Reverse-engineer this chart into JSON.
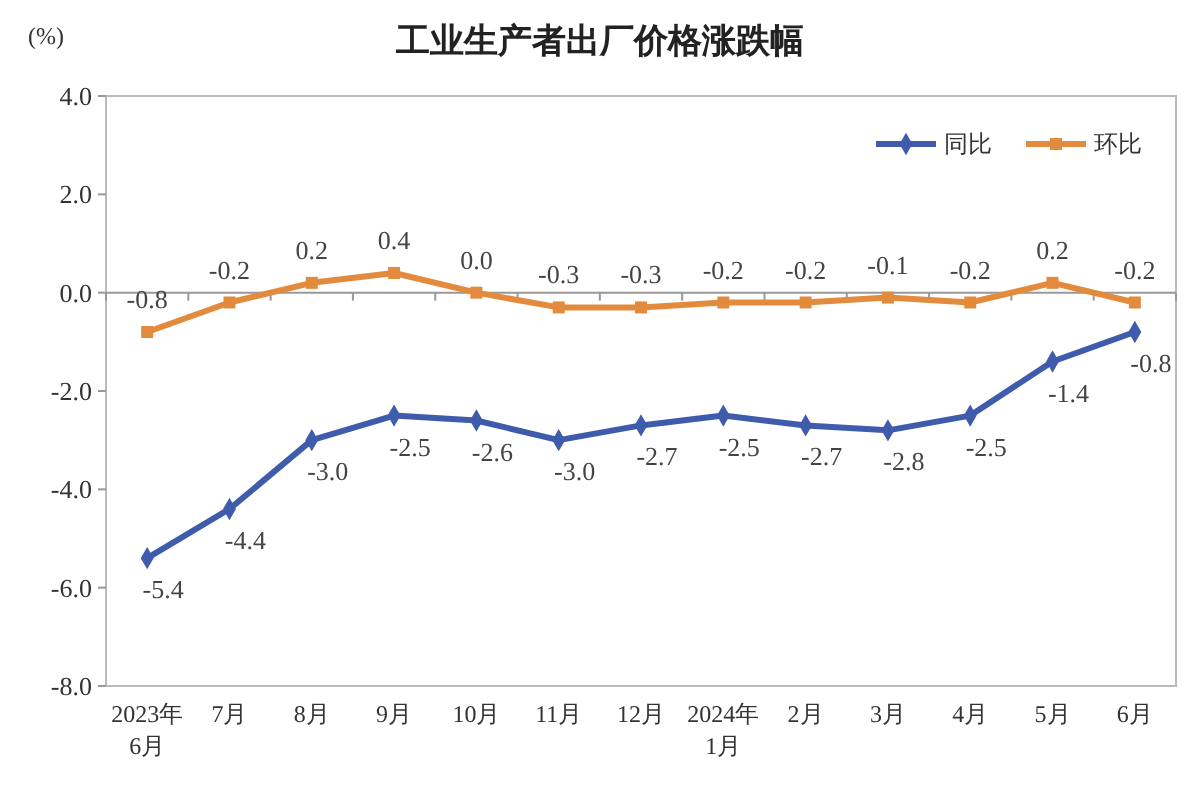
{
  "chart_data": {
    "type": "line",
    "title": "工业生产者出厂价格涨跌幅",
    "ylabel": "(%)",
    "categories": [
      "2023年\n6月",
      "7月",
      "8月",
      "9月",
      "10月",
      "11月",
      "12月",
      "2024年\n1月",
      "2月",
      "3月",
      "4月",
      "5月",
      "6月"
    ],
    "series": [
      {
        "name": "同比",
        "color": "#3f5bab",
        "marker": "diamond",
        "values": [
          -5.4,
          -4.4,
          -3.0,
          -2.5,
          -2.6,
          -3.0,
          -2.7,
          -2.5,
          -2.7,
          -2.8,
          -2.5,
          -1.4,
          -0.8
        ],
        "value_labels": [
          "-5.4",
          "-4.4",
          "-3.0",
          "-2.5",
          "-2.6",
          "-3.0",
          "-2.7",
          "-2.5",
          "-2.7",
          "-2.8",
          "-2.5",
          "-1.4",
          "-0.8"
        ]
      },
      {
        "name": "环比",
        "color": "#e38b3d",
        "marker": "square",
        "values": [
          -0.8,
          -0.2,
          0.2,
          0.4,
          0.0,
          -0.3,
          -0.3,
          -0.2,
          -0.2,
          -0.1,
          -0.2,
          0.2,
          -0.2
        ],
        "value_labels": [
          "-0.8",
          "-0.2",
          "0.2",
          "0.4",
          "0.0",
          "-0.3",
          "-0.3",
          "-0.2",
          "-0.2",
          "-0.1",
          "-0.2",
          "0.2",
          "-0.2"
        ]
      }
    ],
    "ylim": [
      -8,
      4
    ],
    "yticks": [
      {
        "value": -8,
        "label": "-8.0"
      },
      {
        "value": -6,
        "label": "-6.0"
      },
      {
        "value": -4,
        "label": "-4.0"
      },
      {
        "value": -2,
        "label": "-2.0"
      },
      {
        "value": 0,
        "label": "0.0"
      },
      {
        "value": 2,
        "label": "2.0"
      },
      {
        "value": 4,
        "label": "4.0"
      }
    ],
    "legend": "top right"
  }
}
